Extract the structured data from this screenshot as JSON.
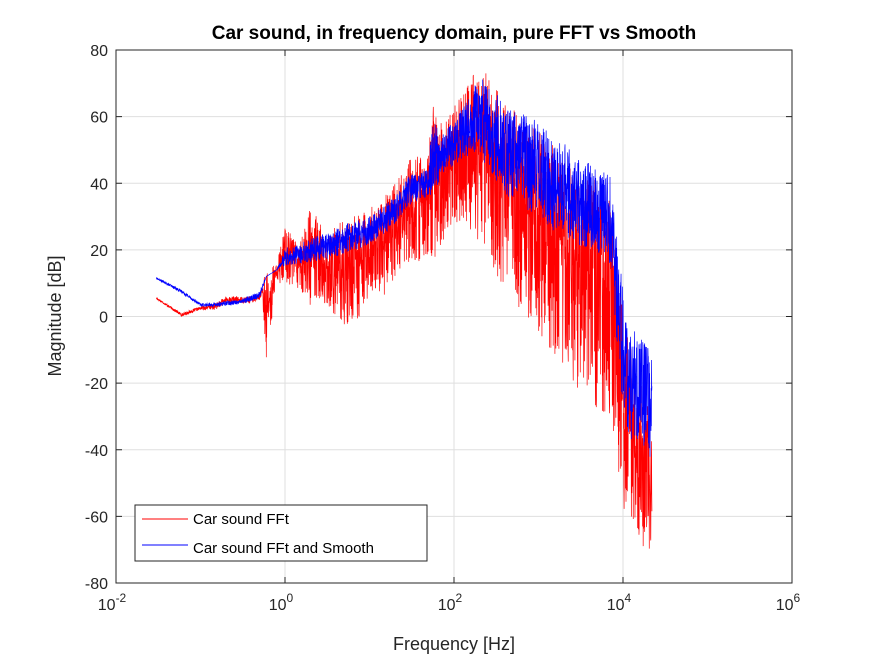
{
  "chart_data": {
    "type": "line",
    "title": "Car sound, in frequency domain, pure FFT vs Smooth",
    "xlabel": "Frequency [Hz]",
    "ylabel": "Magnitude [dB]",
    "xscale": "log",
    "xlim": [
      0.01,
      1000000
    ],
    "ylim": [
      -80,
      80
    ],
    "x_ticks": [
      {
        "value": 0.01,
        "base": "10",
        "exp": "-2"
      },
      {
        "value": 1,
        "base": "10",
        "exp": "0"
      },
      {
        "value": 100,
        "base": "10",
        "exp": "2"
      },
      {
        "value": 10000,
        "base": "10",
        "exp": "4"
      },
      {
        "value": 1000000,
        "base": "10",
        "exp": "6"
      }
    ],
    "y_ticks": [
      -80,
      -60,
      -40,
      -20,
      0,
      20,
      40,
      60,
      80
    ],
    "grid": true,
    "legend_position": "bottom-left",
    "series": [
      {
        "name": "Car sound FFt",
        "color": "#ff0000",
        "envelope": {
          "x": [
            0.03,
            0.06,
            0.1,
            0.15,
            0.2,
            0.3,
            0.4,
            0.5,
            0.6,
            0.8,
            1,
            1.5,
            2,
            3,
            5,
            8,
            10,
            15,
            20,
            30,
            50,
            55,
            70,
            100,
            150,
            200,
            250,
            300,
            400,
            500,
            700,
            1000,
            1500,
            2000,
            3000,
            5000,
            7000,
            10000,
            12000,
            15000,
            18000,
            20000,
            22000
          ],
          "upper": [
            5.5,
            1,
            3,
            4,
            8,
            9,
            8,
            7,
            14,
            16,
            27,
            22,
            33,
            26,
            29,
            31,
            33,
            36,
            40,
            48,
            50,
            64,
            58,
            63,
            70,
            76,
            73,
            72,
            65,
            63,
            60,
            56,
            52,
            48,
            43,
            41,
            36,
            2,
            -8,
            -18,
            -22,
            -28,
            -35
          ],
          "lower": [
            5,
            0,
            2,
            2,
            2,
            0,
            2,
            4,
            -13,
            10,
            10,
            8,
            3,
            4,
            -3,
            0,
            5,
            5,
            12,
            15,
            18,
            15,
            20,
            28,
            26,
            22,
            20,
            12,
            8,
            5,
            0,
            -5,
            -12,
            -18,
            -22,
            -28,
            -30,
            -62,
            -62,
            -65,
            -70,
            -76,
            -78
          ],
          "mean": [
            5.5,
            0.5,
            2.5,
            3,
            5,
            5,
            5,
            6,
            10,
            13,
            20,
            18,
            22,
            20,
            21,
            23,
            25,
            28,
            32,
            38,
            40,
            45,
            44,
            50,
            55,
            52,
            50,
            45,
            40,
            36,
            33,
            28,
            24,
            20,
            14,
            10,
            6,
            -20,
            -35,
            -40,
            -45,
            -50,
            -52
          ]
        }
      },
      {
        "name": "Car sound FFt and Smooth",
        "color": "#0000ff",
        "envelope": {
          "x": [
            0.03,
            0.06,
            0.1,
            0.15,
            0.2,
            0.3,
            0.4,
            0.5,
            0.6,
            0.8,
            1,
            1.5,
            2,
            3,
            5,
            8,
            10,
            15,
            20,
            30,
            50,
            55,
            70,
            100,
            150,
            200,
            250,
            300,
            400,
            500,
            700,
            1000,
            1500,
            2000,
            3000,
            5000,
            7000,
            10000,
            12000,
            15000,
            18000,
            20000,
            22000
          ],
          "upper": [
            11.5,
            8,
            4,
            4,
            5,
            5,
            7,
            8,
            12,
            14,
            21,
            22,
            24,
            26,
            28,
            30,
            31,
            34,
            37,
            43,
            45,
            62,
            55,
            60,
            67,
            74,
            71,
            70,
            65,
            63,
            62,
            60,
            56,
            53,
            50,
            46,
            44,
            10,
            0,
            -3,
            -6,
            -8,
            -10
          ],
          "lower": [
            11,
            7,
            3,
            3,
            3.5,
            4,
            4,
            5,
            12,
            14,
            15,
            15,
            16,
            17,
            18,
            20,
            22,
            24,
            28,
            33,
            36,
            36,
            40,
            45,
            48,
            46,
            44,
            40,
            36,
            32,
            30,
            28,
            24,
            22,
            20,
            18,
            14,
            -30,
            -38,
            -40,
            -42,
            -44,
            -45
          ],
          "mean": [
            11.5,
            7.5,
            3.5,
            3.5,
            4,
            4.5,
            5.5,
            6.5,
            12,
            14,
            18,
            19,
            20,
            21,
            23,
            25,
            26,
            29,
            32,
            38,
            40,
            48,
            48,
            52,
            57,
            60,
            57,
            55,
            50,
            48,
            46,
            44,
            40,
            38,
            35,
            32,
            29,
            -10,
            -20,
            -22,
            -24,
            -26,
            -28
          ]
        }
      }
    ]
  }
}
